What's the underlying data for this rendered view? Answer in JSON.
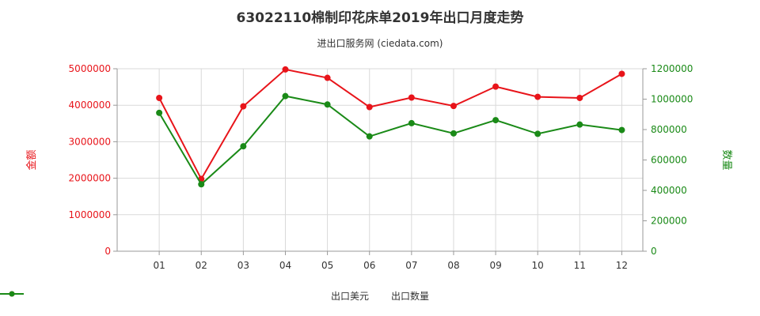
{
  "header": {
    "title": "63022110棉制印花床单2019年出口月度走势",
    "subtitle": "进出口服务网 (ciedata.com)"
  },
  "chart_data": {
    "type": "line",
    "categories": [
      "01",
      "02",
      "03",
      "04",
      "05",
      "06",
      "07",
      "08",
      "09",
      "10",
      "11",
      "12"
    ],
    "series": [
      {
        "name": "出口美元",
        "axis": "left",
        "color": "#e8141a",
        "values": [
          4200000,
          1980000,
          3970000,
          4980000,
          4750000,
          3950000,
          4210000,
          3980000,
          4510000,
          4230000,
          4200000,
          4860000
        ]
      },
      {
        "name": "出口数量",
        "axis": "right",
        "color": "#1a8a17",
        "values": [
          910000,
          440000,
          690000,
          1020000,
          965000,
          755000,
          842000,
          775000,
          862000,
          772000,
          833000,
          797000
        ]
      }
    ],
    "left_axis": {
      "label": "金额",
      "ylim": [
        0,
        5000000
      ],
      "ticks": [
        0,
        1000000,
        2000000,
        3000000,
        4000000,
        5000000
      ],
      "tick_labels": [
        "0",
        "1000000",
        "2000000",
        "3000000",
        "4000000",
        "5000000"
      ],
      "color": "#e8141a"
    },
    "right_axis": {
      "label": "数量",
      "ylim": [
        0,
        1200000
      ],
      "ticks": [
        0,
        200000,
        400000,
        600000,
        800000,
        1000000,
        1200000
      ],
      "tick_labels": [
        "0",
        "200000",
        "400000",
        "600000",
        "800000",
        "1000000",
        "1200000"
      ],
      "color": "#1a8a17"
    },
    "grid": true,
    "legend_position": "bottom-center"
  }
}
